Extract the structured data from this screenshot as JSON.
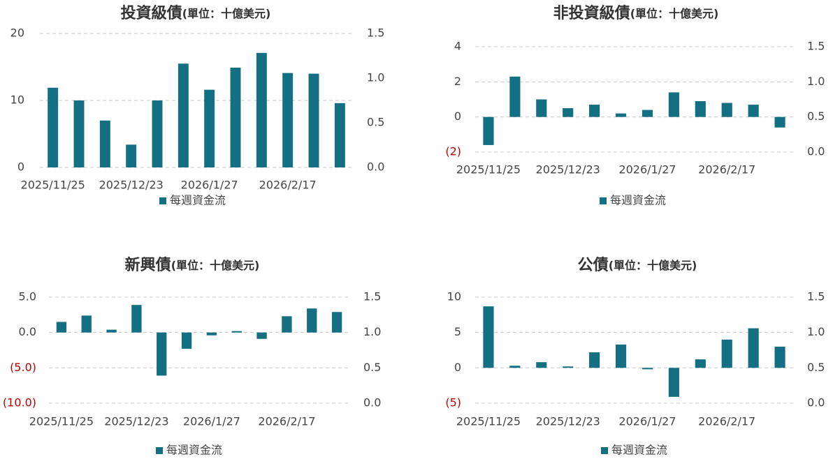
{
  "chart_data": [
    {
      "type": "bar",
      "title": "投資級債",
      "unit": "(單位：十億美元)",
      "color": "#146f82",
      "grid": true,
      "categories": [
        "2025/11/25",
        null,
        null,
        "2025/12/23",
        null,
        null,
        "2026/1/27",
        null,
        null,
        "2026/2/17",
        null,
        null
      ],
      "series": [
        {
          "name": "每週資金流",
          "color": "#146f82",
          "values": [
            11.9,
            10.0,
            7.0,
            3.4,
            10.0,
            15.5,
            11.6,
            14.9,
            17.1,
            14.1,
            14.0,
            9.6
          ]
        }
      ],
      "ylim": [
        0,
        20
      ],
      "yticks": [
        0,
        10,
        20
      ],
      "y2lim": [
        0,
        1.5
      ],
      "y2ticks": [
        {
          "value": 0,
          "label": "0.0"
        },
        0.5,
        {
          "value": 1,
          "label": "1.0"
        },
        1.5
      ]
    },
    {
      "type": "bar",
      "title": "非投資級債",
      "unit": "(單位：十億美元)",
      "color": "#146f82",
      "grid": true,
      "categories": [
        "2025/11/25",
        null,
        null,
        "2025/12/23",
        null,
        null,
        "2026/1/27",
        null,
        null,
        "2026/2/17",
        null,
        null
      ],
      "series": [
        {
          "name": "每週資金流",
          "color": "#146f82",
          "values": [
            -1.6,
            2.3,
            1.0,
            0.5,
            0.7,
            0.2,
            0.4,
            1.4,
            0.9,
            0.8,
            0.7,
            -0.6
          ]
        }
      ],
      "ylim": [
        -2,
        4
      ],
      "yticks": [
        {
          "value": -2,
          "label": "(2)"
        },
        0,
        2,
        4
      ],
      "y2lim": [
        0,
        1.5
      ],
      "y2ticks": [
        {
          "value": 0,
          "label": "0.0"
        },
        0.5,
        {
          "value": 1,
          "label": "1.0"
        },
        1.5
      ]
    },
    {
      "type": "bar",
      "title": "新興債",
      "unit": "(單位：十億美元)",
      "color": "#146f82",
      "grid": true,
      "categories": [
        "2025/11/25",
        null,
        null,
        "2025/12/23",
        null,
        null,
        "2026/1/27",
        null,
        null,
        "2026/2/17",
        null,
        null
      ],
      "series": [
        {
          "name": "每週資金流",
          "color": "#146f82",
          "values": [
            1.5,
            2.4,
            0.4,
            3.9,
            -6.1,
            -2.3,
            -0.4,
            0.2,
            -0.9,
            2.3,
            3.4,
            2.9
          ]
        }
      ],
      "ylim": [
        -10,
        5
      ],
      "yticks": [
        {
          "value": -10,
          "label": "(10.0)"
        },
        {
          "value": -5,
          "label": "(5.0)"
        },
        {
          "value": 0,
          "label": "0.0"
        },
        {
          "value": 5,
          "label": "5.0"
        }
      ],
      "y2lim": [
        0,
        1.5
      ],
      "y2ticks": [
        {
          "value": 0,
          "label": "0.0"
        },
        0.5,
        {
          "value": 1,
          "label": "1.0"
        },
        1.5
      ]
    },
    {
      "type": "bar",
      "title": "公債",
      "unit": "(單位：十億美元)",
      "color": "#146f82",
      "grid": true,
      "categories": [
        "2025/11/25",
        null,
        null,
        "2025/12/23",
        null,
        null,
        "2026/1/27",
        null,
        null,
        "2026/2/17",
        null,
        null
      ],
      "series": [
        {
          "name": "每週資金流",
          "color": "#146f82",
          "values": [
            8.7,
            0.3,
            0.8,
            0.2,
            2.2,
            3.3,
            -0.2,
            -4.1,
            1.2,
            4.0,
            5.6,
            3.0
          ]
        }
      ],
      "ylim": [
        -5,
        10
      ],
      "yticks": [
        {
          "value": -5,
          "label": "(5)"
        },
        0,
        5,
        10
      ],
      "y2lim": [
        0,
        1.5
      ],
      "y2ticks": [
        {
          "value": 0,
          "label": "0.0"
        },
        0.5,
        {
          "value": 1,
          "label": "1.0"
        },
        1.5
      ]
    }
  ]
}
